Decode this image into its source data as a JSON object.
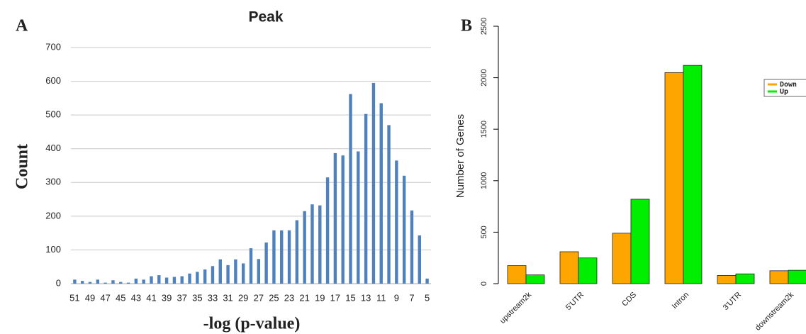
{
  "chart_data": [
    {
      "type": "bar",
      "panel": "A",
      "title": "Peak",
      "x_label": "-log (p-value)",
      "y_label": "Count",
      "categories": [
        "51",
        null,
        "49",
        null,
        "47",
        null,
        "45",
        null,
        "43",
        null,
        "41",
        null,
        "39",
        null,
        "37",
        null,
        "35",
        null,
        "33",
        null,
        "31",
        null,
        "29",
        null,
        "27",
        null,
        "25",
        null,
        "23",
        null,
        "21",
        null,
        "19",
        null,
        "17",
        null,
        "15",
        null,
        "13",
        null,
        "11",
        null,
        "9",
        null,
        "7",
        null,
        "5"
      ],
      "values": [
        12,
        8,
        5,
        12,
        3,
        10,
        5,
        3,
        15,
        12,
        22,
        25,
        18,
        20,
        22,
        30,
        35,
        42,
        52,
        72,
        55,
        72,
        60,
        105,
        73,
        122,
        158,
        158,
        158,
        188,
        215,
        235,
        232,
        315,
        387,
        380,
        562,
        392,
        503,
        595,
        535,
        470,
        365,
        320,
        217,
        143,
        15
      ],
      "color": "#4f81bd",
      "ylim": [
        0,
        700
      ],
      "yticks": [
        0,
        100,
        200,
        300,
        400,
        500,
        600,
        700
      ],
      "grid": true
    },
    {
      "type": "bar",
      "panel": "B",
      "y_label": "Number of Genes",
      "categories": [
        "upstream2k",
        "5'UTR",
        "CDS",
        "Intron",
        "3'UTR",
        "downstream2k"
      ],
      "series": [
        {
          "name": "Down",
          "color": "#ffa500",
          "values": [
            175,
            310,
            490,
            2050,
            80,
            125
          ]
        },
        {
          "name": "Up",
          "color": "#00ee00",
          "values": [
            85,
            250,
            820,
            2120,
            95,
            130
          ]
        }
      ],
      "ylim": [
        0,
        2500
      ],
      "yticks": [
        0,
        500,
        1000,
        1500,
        2000,
        2500
      ],
      "grid": false,
      "legend": "top-right"
    }
  ]
}
